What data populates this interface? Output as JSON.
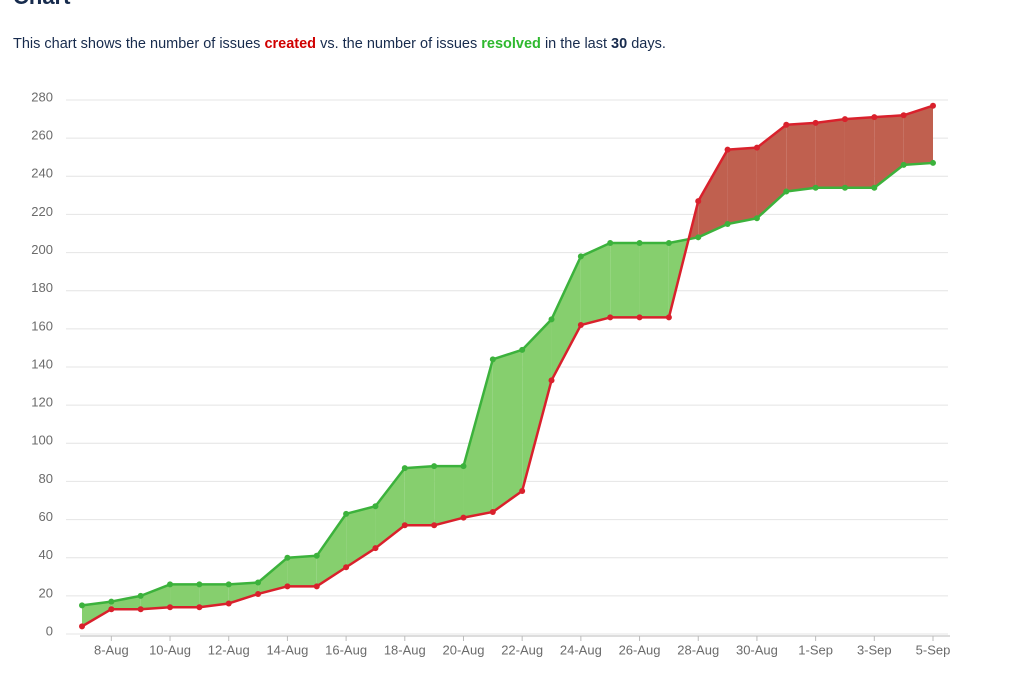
{
  "header": {
    "title": "Chart",
    "description": [
      "This chart shows the number of issues ",
      "created",
      " vs. the number of issues ",
      "resolved",
      " in the last ",
      "30",
      " days."
    ]
  },
  "chart_data": {
    "type": "area-difference",
    "categories": [
      null,
      "8-Aug",
      null,
      "10-Aug",
      null,
      "12-Aug",
      null,
      "14-Aug",
      null,
      "16-Aug",
      null,
      "18-Aug",
      null,
      "20-Aug",
      null,
      "22-Aug",
      null,
      "24-Aug",
      null,
      "26-Aug",
      null,
      "28-Aug",
      null,
      "30-Aug",
      null,
      "1-Sep",
      null,
      "3-Sep",
      null,
      "5-Sep"
    ],
    "series": [
      {
        "name": "created",
        "color": "#d9212c",
        "fill": "#c0604f",
        "values": [
          4,
          13,
          13,
          14,
          14,
          16,
          21,
          25,
          25,
          35,
          45,
          57,
          57,
          61,
          64,
          75,
          133,
          162,
          166,
          166,
          166,
          227,
          254,
          255,
          267,
          268,
          270,
          271,
          272,
          277
        ]
      },
      {
        "name": "resolved",
        "color": "#3cb23c",
        "fill": "#86cf6e",
        "values": [
          15,
          17,
          20,
          26,
          26,
          26,
          27,
          40,
          41,
          63,
          67,
          87,
          88,
          88,
          144,
          149,
          165,
          198,
          205,
          205,
          205,
          208,
          215,
          218,
          232,
          234,
          234,
          234,
          246,
          247
        ]
      }
    ],
    "ylim": [
      0,
      280
    ],
    "yticks": [
      0,
      20,
      40,
      60,
      80,
      100,
      120,
      140,
      160,
      180,
      200,
      220,
      240,
      260,
      280
    ],
    "grid": true
  }
}
